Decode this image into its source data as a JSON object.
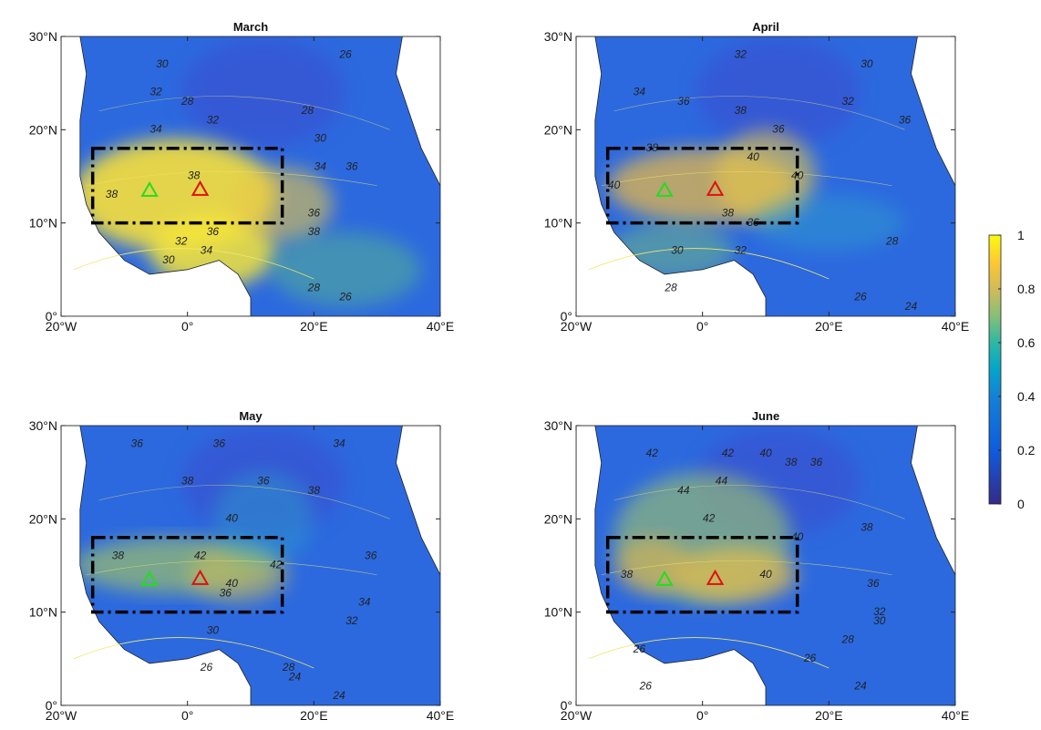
{
  "panels": [
    {
      "title": "March",
      "xticks": [
        {
          "value": -20,
          "label": "20°W"
        },
        {
          "value": 0,
          "label": "0°"
        },
        {
          "value": 20,
          "label": "20°E"
        },
        {
          "value": 40,
          "label": "40°E"
        }
      ],
      "yticks": [
        {
          "value": 0,
          "label": "0°"
        },
        {
          "value": 10,
          "label": "10°N"
        },
        {
          "value": 20,
          "label": "20°N"
        },
        {
          "value": 30,
          "label": "30°N"
        }
      ],
      "contour_labels": [
        "30",
        "26",
        "28",
        "32",
        "34",
        "32",
        "30",
        "28",
        "36",
        "34",
        "38",
        "38",
        "36",
        "34",
        "32",
        "30",
        "38",
        "36",
        "28",
        "26"
      ]
    },
    {
      "title": "April",
      "xticks": [
        {
          "value": -20,
          "label": "20°W"
        },
        {
          "value": 0,
          "label": "0°"
        },
        {
          "value": 20,
          "label": "20°E"
        },
        {
          "value": 40,
          "label": "40°E"
        }
      ],
      "yticks": [
        {
          "value": 0,
          "label": "0°"
        },
        {
          "value": 10,
          "label": "10°N"
        },
        {
          "value": 20,
          "label": "20°N"
        },
        {
          "value": 30,
          "label": "30°N"
        }
      ],
      "contour_labels": [
        "32",
        "30",
        "34",
        "36",
        "32",
        "38",
        "36",
        "38",
        "40",
        "40",
        "40",
        "38",
        "36",
        "32",
        "30",
        "28",
        "28",
        "26",
        "24",
        "36"
      ]
    },
    {
      "title": "May",
      "xticks": [
        {
          "value": -20,
          "label": "20°W"
        },
        {
          "value": 0,
          "label": "0°"
        },
        {
          "value": 20,
          "label": "20°E"
        },
        {
          "value": 40,
          "label": "40°E"
        }
      ],
      "yticks": [
        {
          "value": 0,
          "label": "0°"
        },
        {
          "value": 10,
          "label": "10°N"
        },
        {
          "value": 20,
          "label": "20°N"
        },
        {
          "value": 30,
          "label": "30°N"
        }
      ],
      "contour_labels": [
        "36",
        "36",
        "34",
        "38",
        "40",
        "36",
        "38",
        "42",
        "40",
        "38",
        "36",
        "36",
        "34",
        "32",
        "30",
        "28",
        "24",
        "26",
        "24",
        "42"
      ]
    },
    {
      "title": "June",
      "xticks": [
        {
          "value": -20,
          "label": "20°W"
        },
        {
          "value": 0,
          "label": "0°"
        },
        {
          "value": 20,
          "label": "20°E"
        },
        {
          "value": 40,
          "label": "40°E"
        }
      ],
      "yticks": [
        {
          "value": 0,
          "label": "0°"
        },
        {
          "value": 10,
          "label": "10°N"
        },
        {
          "value": 20,
          "label": "20°N"
        },
        {
          "value": 30,
          "label": "30°N"
        }
      ],
      "contour_labels": [
        "42",
        "42",
        "40",
        "38",
        "36",
        "44",
        "44",
        "42",
        "40",
        "38",
        "40",
        "38",
        "36",
        "32",
        "30",
        "28",
        "26",
        "26",
        "24",
        "26"
      ]
    }
  ],
  "colorbar": {
    "ticks": [
      0,
      0.2,
      0.4,
      0.6,
      0.8,
      1
    ]
  }
}
